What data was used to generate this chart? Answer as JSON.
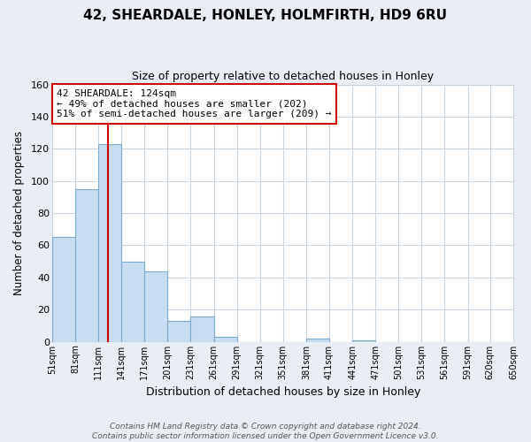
{
  "title": "42, SHEARDALE, HONLEY, HOLMFIRTH, HD9 6RU",
  "subtitle": "Size of property relative to detached houses in Honley",
  "xlabel": "Distribution of detached houses by size in Honley",
  "ylabel": "Number of detached properties",
  "bar_color": "#c8ddf0",
  "bar_edge_color": "#7aaad0",
  "bins_left": [
    51,
    81,
    111,
    141,
    171,
    201,
    231,
    261,
    291,
    321,
    351,
    381,
    411,
    441,
    471,
    501,
    531,
    561,
    591,
    620
  ],
  "bin_width": 30,
  "heights": [
    65,
    95,
    123,
    50,
    44,
    13,
    16,
    3,
    0,
    0,
    0,
    2,
    0,
    1,
    0,
    0,
    0,
    0,
    0,
    0
  ],
  "tick_labels": [
    "51sqm",
    "81sqm",
    "111sqm",
    "141sqm",
    "171sqm",
    "201sqm",
    "231sqm",
    "261sqm",
    "291sqm",
    "321sqm",
    "351sqm",
    "381sqm",
    "411sqm",
    "441sqm",
    "471sqm",
    "501sqm",
    "531sqm",
    "561sqm",
    "591sqm",
    "620sqm",
    "650sqm"
  ],
  "ylim": [
    0,
    160
  ],
  "yticks": [
    0,
    20,
    40,
    60,
    80,
    100,
    120,
    140,
    160
  ],
  "property_line_x": 124,
  "property_line_color": "#cc0000",
  "annotation_text": "42 SHEARDALE: 124sqm\n← 49% of detached houses are smaller (202)\n51% of semi-detached houses are larger (209) →",
  "annotation_box_color": "#ffffff",
  "annotation_box_edge_color": "#cc0000",
  "footer_text": "Contains HM Land Registry data © Crown copyright and database right 2024.\nContains public sector information licensed under the Open Government Licence v3.0.",
  "background_color": "#e8eef4",
  "plot_bg_color": "#ffffff",
  "grid_color": "#c8d4e0",
  "xlim_left": 51,
  "xlim_right": 651
}
